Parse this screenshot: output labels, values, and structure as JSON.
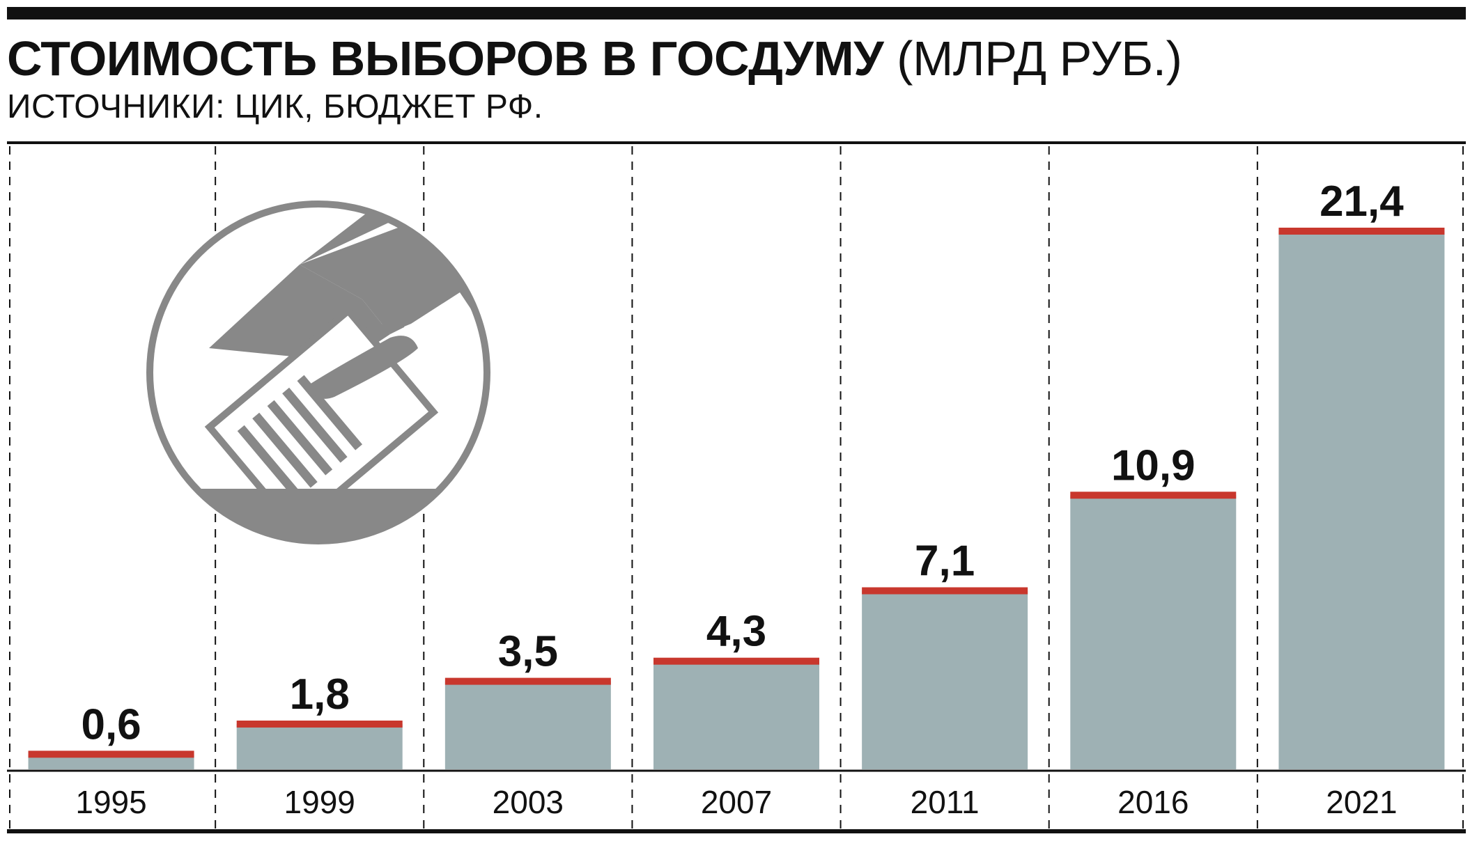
{
  "header": {
    "title_bold": "СТОИМОСТЬ ВЫБОРОВ В ГОСДУМУ",
    "title_unit": "(МЛРД РУБ.)",
    "source": "ИСТОЧНИКИ: ЦИК, БЮДЖЕТ РФ."
  },
  "icon": {
    "name": "ballot-box-vote-icon"
  },
  "colors": {
    "bar": "#9eb1b4",
    "bar_top": "#c8372d",
    "text": "#111111",
    "icon": "#888888"
  },
  "chart_data": {
    "type": "bar",
    "title": "СТОИМОСТЬ ВЫБОРОВ В ГОСДУМУ (МЛРД РУБ.)",
    "subtitle": "ИСТОЧНИКИ: ЦИК, БЮДЖЕТ РФ.",
    "categories": [
      "1995",
      "1999",
      "2003",
      "2007",
      "2011",
      "2016",
      "2021"
    ],
    "values": [
      0.6,
      1.8,
      3.5,
      4.3,
      7.1,
      10.9,
      21.4
    ],
    "value_labels": [
      "0,6",
      "1,8",
      "3,5",
      "4,3",
      "7,1",
      "10,9",
      "21,4"
    ],
    "xlabel": "",
    "ylabel": "",
    "ylim": [
      0,
      21.4
    ],
    "grid": "vertical dashed separators",
    "legend": "none"
  }
}
